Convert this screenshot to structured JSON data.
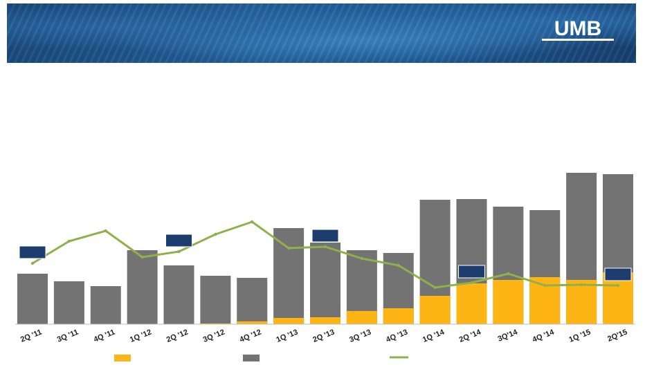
{
  "logo": {
    "text": "UMB"
  },
  "colors": {
    "bar_total": "#737373",
    "bar_segment": "#fdb515",
    "line": "#8fb04a",
    "marker_box": "#1c3d6e"
  },
  "chart_data": {
    "type": "bar",
    "categories": [
      "2Q '11",
      "3Q '11",
      "4Q '11",
      "1Q '12",
      "2Q '12",
      "3Q '12",
      "4Q '12",
      "1Q '13",
      "2Q '13",
      "3Q '13",
      "4Q '13",
      "1Q '14",
      "2Q '14",
      "3Q'14",
      "4Q '14",
      "1Q '15",
      "2Q'15"
    ],
    "series": [
      {
        "kind": "stacked-bar-total",
        "values": [
          73,
          62,
          55,
          107,
          85,
          70,
          67,
          139,
          118,
          107,
          103,
          180,
          181,
          170,
          165,
          219,
          217
        ]
      },
      {
        "kind": "stacked-bar-bottom",
        "values": [
          0,
          0,
          0,
          0,
          0,
          1,
          4,
          9,
          10,
          19,
          23,
          41,
          59,
          64,
          68,
          64,
          75
        ]
      },
      {
        "kind": "line",
        "values": [
          88,
          120,
          135,
          97,
          105,
          130,
          148,
          110,
          112,
          95,
          85,
          53,
          60,
          73,
          56,
          57,
          56
        ]
      }
    ],
    "ylim": [
      0,
      240
    ],
    "grid": false,
    "legend": {
      "placement": "bottom",
      "entries": [
        "",
        "",
        ""
      ]
    },
    "markers": [
      {
        "category_index": 0,
        "label": ""
      },
      {
        "category_index": 4,
        "label": ""
      },
      {
        "category_index": 8,
        "label": ""
      },
      {
        "category_index": 12,
        "label": ""
      },
      {
        "category_index": 16,
        "label": ""
      }
    ]
  }
}
